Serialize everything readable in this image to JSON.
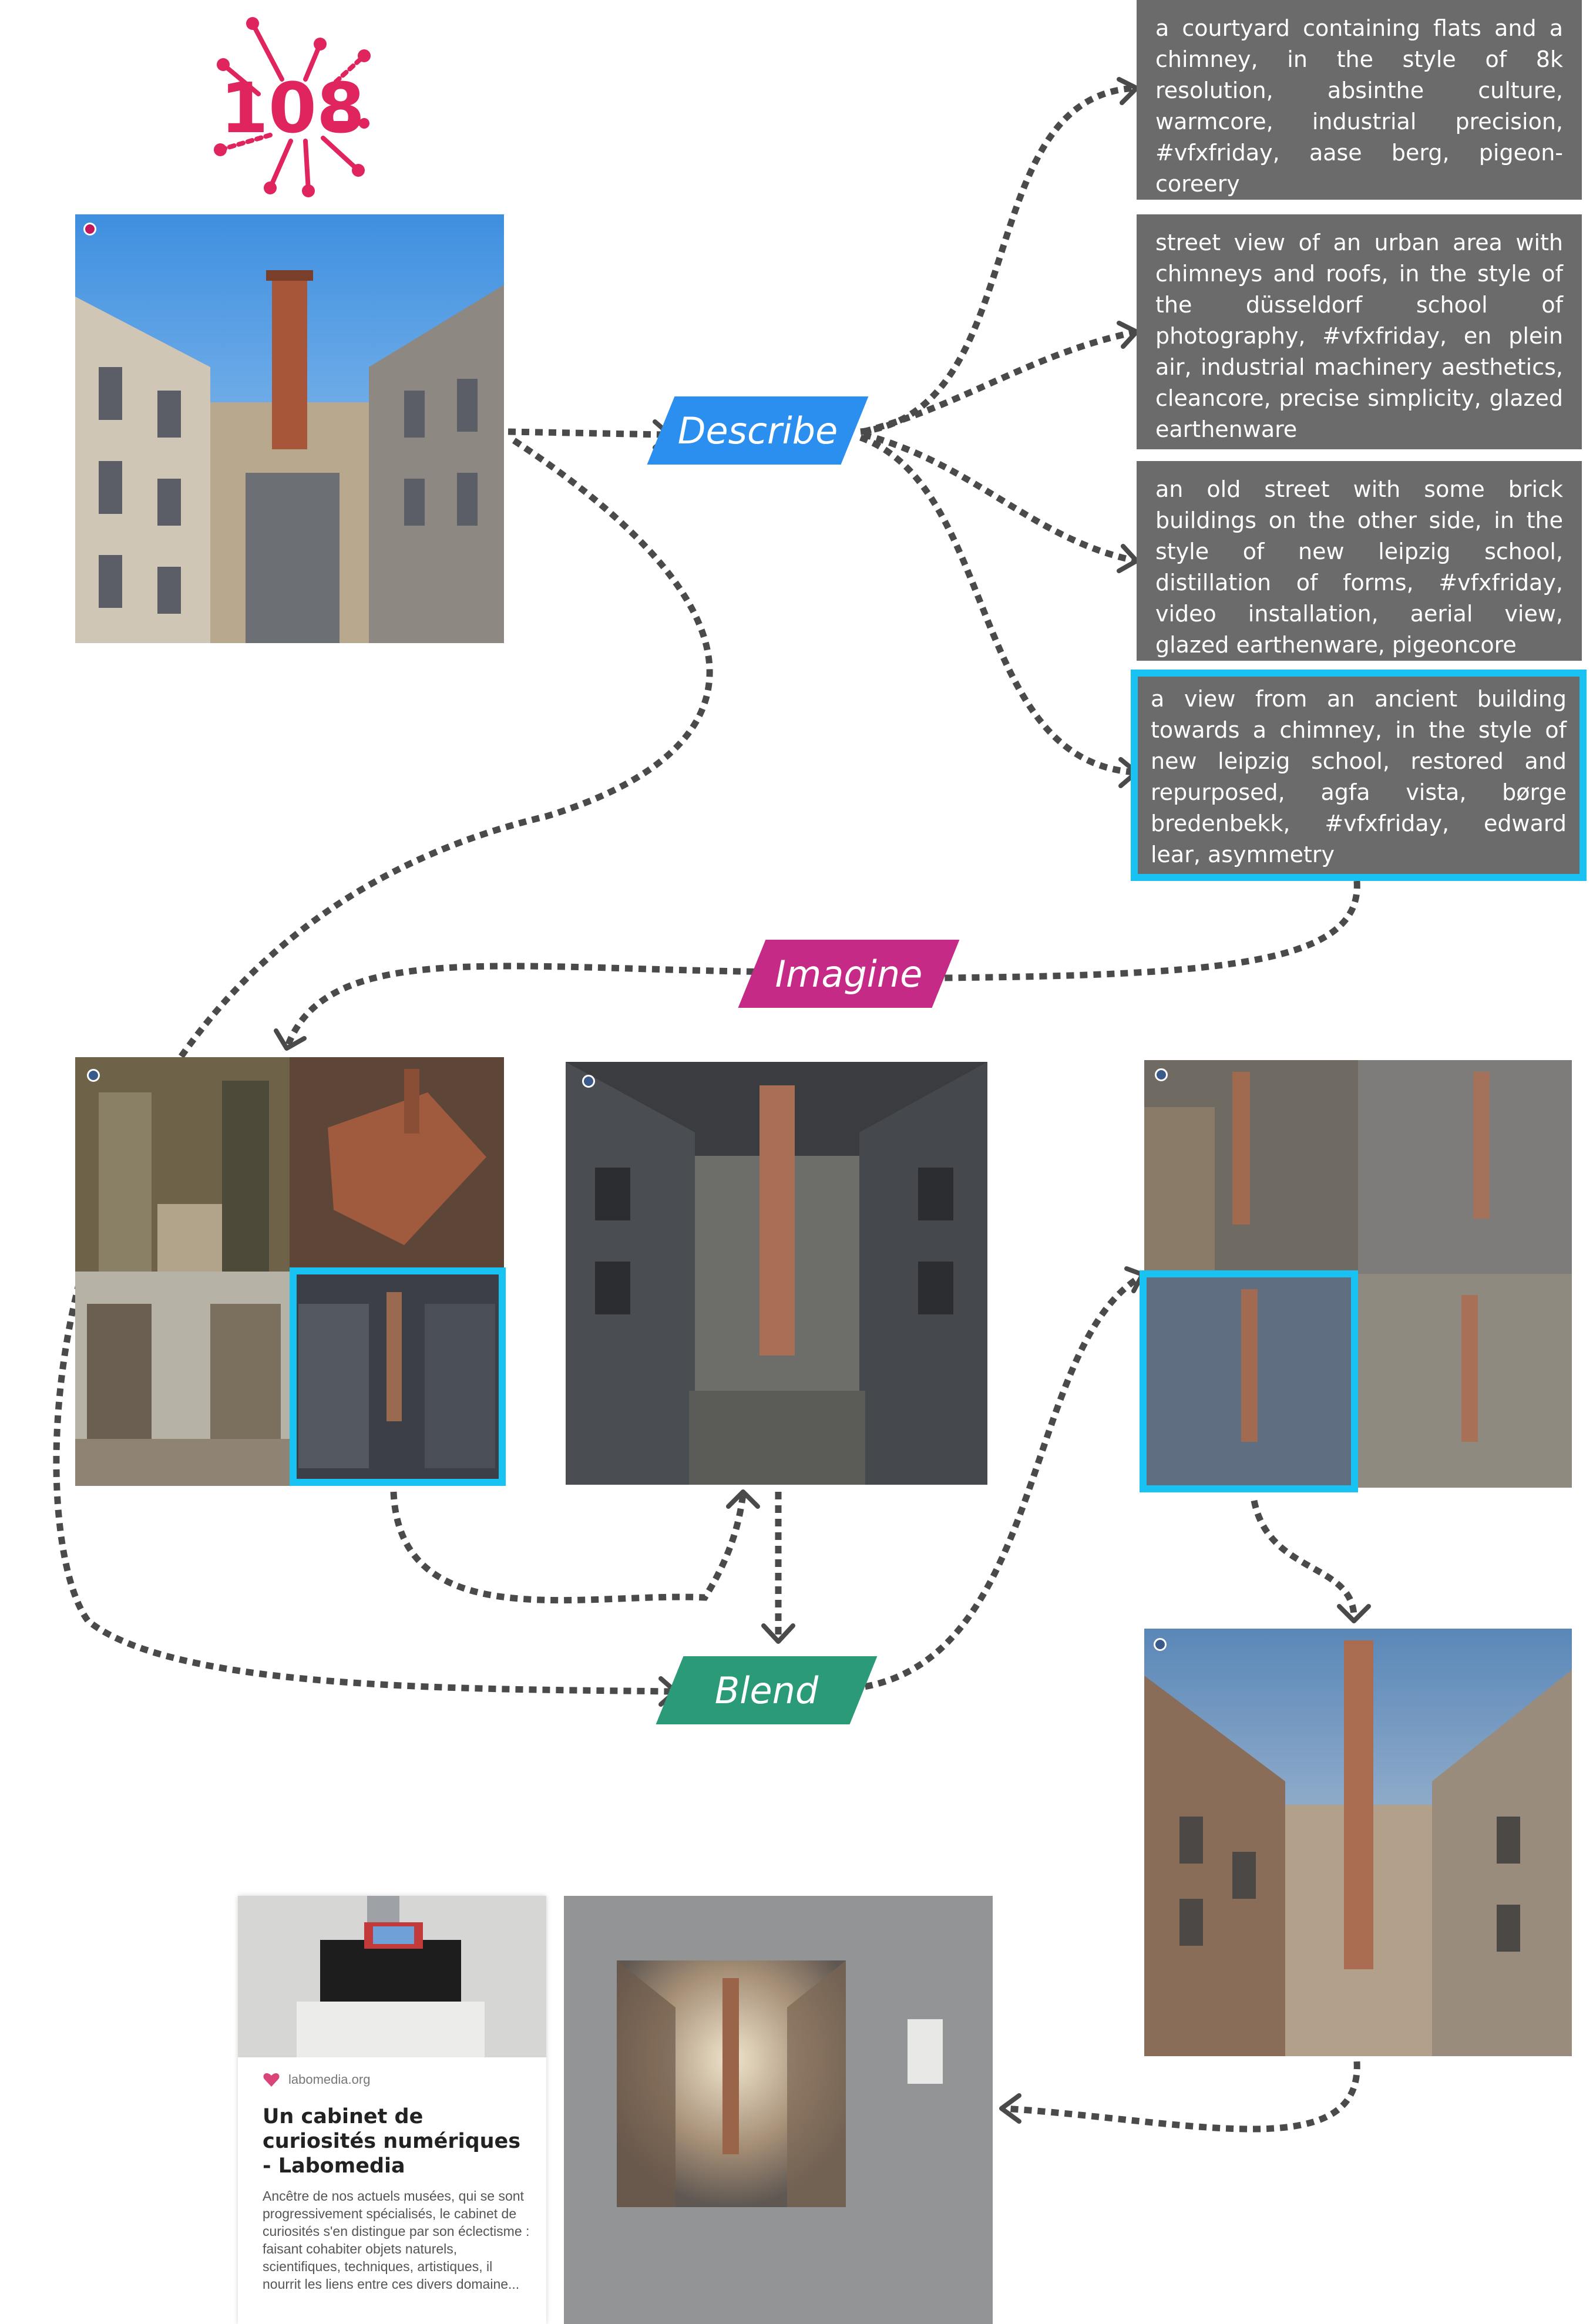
{
  "logo": {
    "text": "108"
  },
  "steps": {
    "describe": "Describe",
    "imagine": "Imagine",
    "blend": "Blend"
  },
  "prompts": [
    "a courtyard containing flats and a chimney, in the style of 8k resolution, absinthe culture, warmcore, industrial precision, #vfxfriday, aase berg, pigeon-coreery",
    "street view of an urban area with chimneys and roofs, in the style of the düsseldorf school of photography, #vfxfriday, en plein air, industrial machinery aesthetics, cleancore, precise simplicity, glazed earthenware",
    "an old street with some brick buildings on the other side, in the style of new leipzig school, distillation of forms, #vfxfriday, video installation, aerial view, glazed earthenware, pigeoncore",
    "a view from an ancient building towards a chimney, in the style of new leipzig school, restored and repurposed, agfa vista, børge bredenbekk, #vfxfriday, edward lear, asymmetry"
  ],
  "selected_prompt_index": 3,
  "card": {
    "site": "labomedia.org",
    "title": "Un cabinet de curiosités numériques - Labomedia",
    "description": "Ancêtre de nos actuels musées, qui se sont progressivement spécialisés, le cabinet de curiosités s'en distingue par son éclectisme : faisant cohabiter objets naturels, scientifiques, techniques, artistiques, il nourrit les liens entre ces divers domaine..."
  },
  "colors": {
    "describe": "#2b8ff0",
    "imagine": "#c52a86",
    "blend": "#2a9a78",
    "selection": "#18c2f2",
    "prompt_bg": "#6b6b6b",
    "arrow": "#4a4a4a",
    "logo": "#e0245e"
  }
}
